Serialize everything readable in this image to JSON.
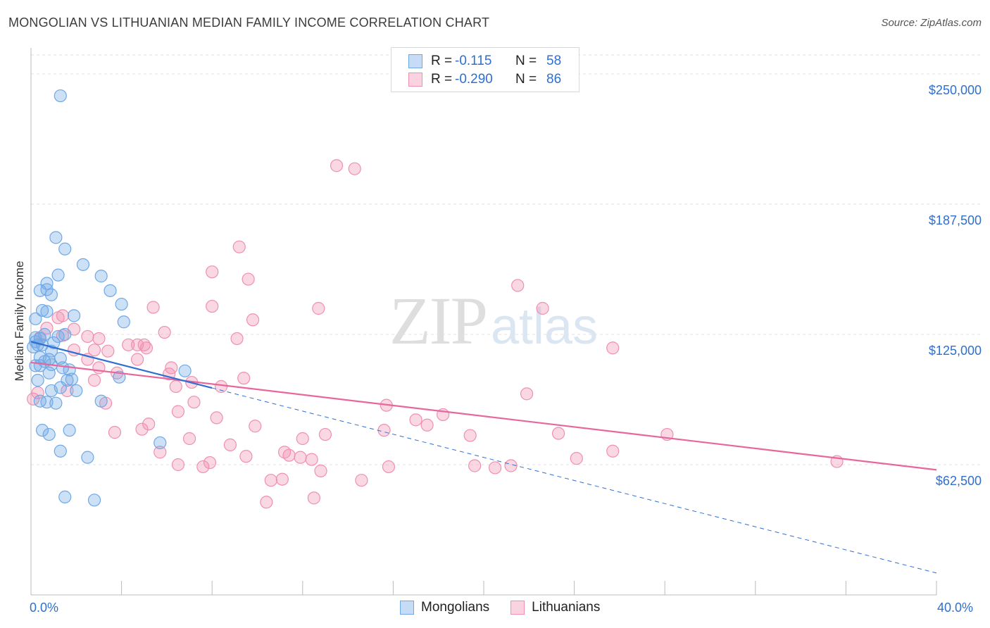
{
  "title": "MONGOLIAN VS LITHUANIAN MEDIAN FAMILY INCOME CORRELATION CHART",
  "source": "Source: ZipAtlas.com",
  "watermark": {
    "zip": "ZIP",
    "atlas": "atlas"
  },
  "legend": {
    "rows": [
      {
        "r_label": "R =",
        "r_value": "-0.115",
        "n_label": "N =",
        "n_value": "58"
      },
      {
        "r_label": "R =",
        "r_value": "-0.290",
        "n_label": "N =",
        "n_value": "86"
      }
    ]
  },
  "bottom_legend": [
    "Mongolians",
    "Lithuanians"
  ],
  "chart_data": {
    "type": "scatter",
    "ylabel": "Median Family Income",
    "xlim": [
      0,
      40
    ],
    "ylim": [
      0,
      262500
    ],
    "x_tick_labels": [
      "0.0%",
      "40.0%"
    ],
    "y_ticks": [
      {
        "value": 62500,
        "label": "$62,500"
      },
      {
        "value": 125000,
        "label": "$125,000"
      },
      {
        "value": 187500,
        "label": "$187,500"
      },
      {
        "value": 250000,
        "label": "$250,000"
      }
    ],
    "grid": true,
    "colors": {
      "mongolians": "#6fa8e6",
      "lithuanians": "#f08fb0",
      "blue_line": "#2f6fd2",
      "pink_line": "#e8679a"
    },
    "series": [
      {
        "name": "Mongolians",
        "trend": {
          "x0": 0,
          "y0": 121500,
          "x_solid_end": 8.0,
          "x1": 40,
          "y1": 10500
        },
        "points": [
          [
            1.3,
            239500
          ],
          [
            1.1,
            171500
          ],
          [
            1.5,
            166000
          ],
          [
            2.3,
            158500
          ],
          [
            3.1,
            153000
          ],
          [
            1.2,
            153500
          ],
          [
            0.7,
            149500
          ],
          [
            0.4,
            146000
          ],
          [
            0.7,
            146500
          ],
          [
            3.5,
            146000
          ],
          [
            0.9,
            144000
          ],
          [
            4.0,
            139500
          ],
          [
            0.5,
            136500
          ],
          [
            0.7,
            136000
          ],
          [
            1.9,
            134000
          ],
          [
            0.2,
            132500
          ],
          [
            4.1,
            131000
          ],
          [
            0.6,
            125000
          ],
          [
            1.2,
            124000
          ],
          [
            1.5,
            125000
          ],
          [
            0.2,
            123500
          ],
          [
            0.4,
            123000
          ],
          [
            0.2,
            121500
          ],
          [
            0.1,
            119000
          ],
          [
            0.3,
            120000
          ],
          [
            0.5,
            120000
          ],
          [
            1.0,
            121000
          ],
          [
            0.9,
            117000
          ],
          [
            0.4,
            114000
          ],
          [
            0.8,
            113000
          ],
          [
            1.3,
            113500
          ],
          [
            0.6,
            112000
          ],
          [
            0.2,
            110000
          ],
          [
            0.9,
            110500
          ],
          [
            0.4,
            110000
          ],
          [
            1.4,
            109000
          ],
          [
            1.7,
            108000
          ],
          [
            6.8,
            107500
          ],
          [
            0.8,
            106500
          ],
          [
            1.6,
            103000
          ],
          [
            1.8,
            103500
          ],
          [
            3.9,
            104500
          ],
          [
            1.3,
            99500
          ],
          [
            0.9,
            98000
          ],
          [
            0.4,
            93000
          ],
          [
            0.7,
            92500
          ],
          [
            1.1,
            92000
          ],
          [
            3.1,
            93000
          ],
          [
            0.5,
            79000
          ],
          [
            1.7,
            79000
          ],
          [
            0.8,
            77000
          ],
          [
            5.7,
            73000
          ],
          [
            1.3,
            69000
          ],
          [
            2.5,
            66000
          ],
          [
            1.5,
            47000
          ],
          [
            2.8,
            45500
          ],
          [
            0.3,
            103000
          ],
          [
            2.0,
            98000
          ]
        ]
      },
      {
        "name": "Lithuanians",
        "trend": {
          "x0": 0,
          "y0": 111500,
          "x1": 40,
          "y1": 60000
        },
        "points": [
          [
            13.5,
            206000
          ],
          [
            14.3,
            204500
          ],
          [
            9.2,
            167000
          ],
          [
            8.0,
            155000
          ],
          [
            9.6,
            151500
          ],
          [
            21.5,
            148500
          ],
          [
            5.4,
            138000
          ],
          [
            8.0,
            138500
          ],
          [
            12.7,
            137500
          ],
          [
            22.6,
            137500
          ],
          [
            1.4,
            134000
          ],
          [
            1.2,
            133000
          ],
          [
            9.8,
            132000
          ],
          [
            0.7,
            128000
          ],
          [
            1.9,
            127500
          ],
          [
            5.9,
            126000
          ],
          [
            1.4,
            124500
          ],
          [
            2.5,
            124000
          ],
          [
            3.0,
            123000
          ],
          [
            9.1,
            123000
          ],
          [
            0.4,
            123500
          ],
          [
            4.3,
            120000
          ],
          [
            4.7,
            120000
          ],
          [
            5.0,
            120000
          ],
          [
            5.1,
            118500
          ],
          [
            2.8,
            117500
          ],
          [
            3.4,
            117000
          ],
          [
            1.9,
            117500
          ],
          [
            25.7,
            118500
          ],
          [
            2.5,
            113000
          ],
          [
            4.7,
            113000
          ],
          [
            3.0,
            109000
          ],
          [
            6.2,
            109000
          ],
          [
            3.8,
            106500
          ],
          [
            6.1,
            106000
          ],
          [
            2.8,
            103000
          ],
          [
            7.1,
            102000
          ],
          [
            9.4,
            104000
          ],
          [
            8.4,
            100000
          ],
          [
            6.4,
            100000
          ],
          [
            1.6,
            98000
          ],
          [
            21.9,
            96500
          ],
          [
            3.3,
            92000
          ],
          [
            7.2,
            92500
          ],
          [
            15.7,
            91000
          ],
          [
            6.5,
            88000
          ],
          [
            18.2,
            86500
          ],
          [
            9.9,
            81000
          ],
          [
            5.2,
            82000
          ],
          [
            15.6,
            79000
          ],
          [
            17.5,
            81500
          ],
          [
            3.7,
            78000
          ],
          [
            23.3,
            77500
          ],
          [
            13.0,
            77000
          ],
          [
            7.0,
            75000
          ],
          [
            28.1,
            77000
          ],
          [
            12.0,
            75000
          ],
          [
            19.4,
            76500
          ],
          [
            4.9,
            79500
          ],
          [
            8.8,
            72000
          ],
          [
            11.2,
            68500
          ],
          [
            11.4,
            67000
          ],
          [
            25.7,
            69000
          ],
          [
            11.9,
            66000
          ],
          [
            24.1,
            65500
          ],
          [
            9.5,
            66500
          ],
          [
            7.9,
            63500
          ],
          [
            5.7,
            68500
          ],
          [
            12.4,
            65000
          ],
          [
            15.8,
            61500
          ],
          [
            19.6,
            62000
          ],
          [
            21.2,
            62000
          ],
          [
            7.6,
            61500
          ],
          [
            6.5,
            62500
          ],
          [
            12.8,
            59500
          ],
          [
            20.5,
            61000
          ],
          [
            11.1,
            55500
          ],
          [
            10.6,
            55000
          ],
          [
            14.6,
            55000
          ],
          [
            35.6,
            64000
          ],
          [
            10.4,
            44500
          ],
          [
            12.5,
            46500
          ],
          [
            0.3,
            97000
          ],
          [
            17.0,
            84000
          ],
          [
            0.1,
            94000
          ],
          [
            8.2,
            85000
          ]
        ]
      }
    ]
  }
}
